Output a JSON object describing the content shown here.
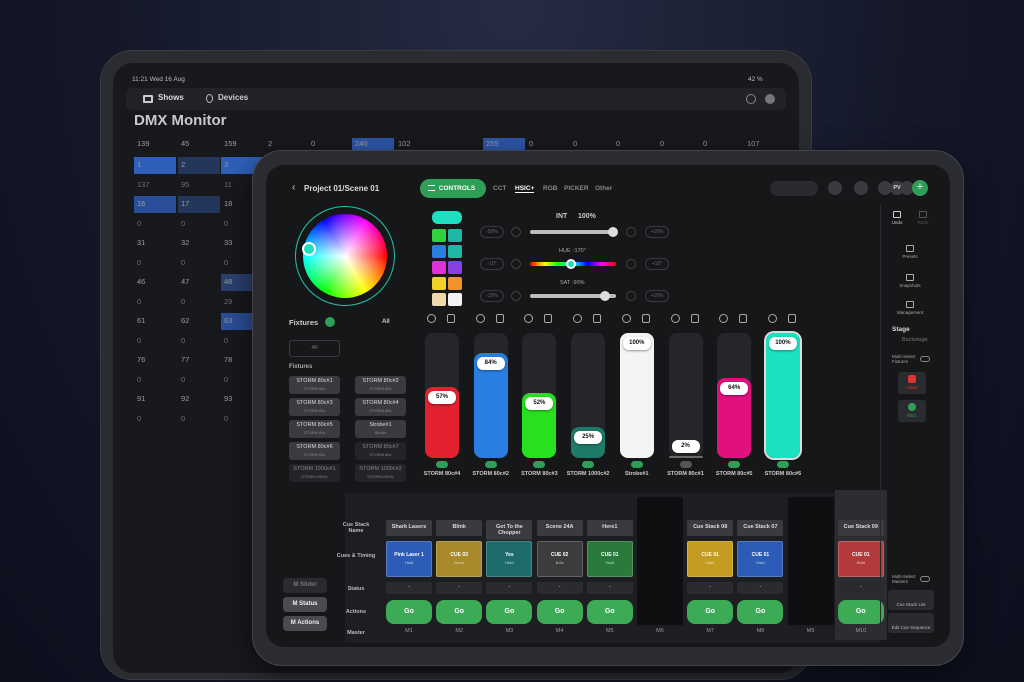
{
  "back_screen": {
    "status_time": "11:21  Wed 16 Aug",
    "battery": "42 %",
    "tabs": [
      "Shows",
      "Devices"
    ],
    "title": "DMX Monitor",
    "header_row": [
      "139",
      "45",
      "159",
      "2",
      "0",
      "240",
      "102",
      "255",
      "0",
      "0",
      "0",
      "0",
      "0",
      "107"
    ],
    "rows": [
      [
        "1",
        "2",
        "3"
      ],
      [
        "137",
        "95",
        "11"
      ],
      [
        "16",
        "17",
        "18"
      ],
      [
        "0",
        "0",
        "0"
      ],
      [
        "31",
        "32",
        "33"
      ],
      [
        "0",
        "0",
        "0"
      ],
      [
        "46",
        "47",
        "48"
      ],
      [
        "0",
        "0",
        "29"
      ],
      [
        "61",
        "62",
        "63"
      ],
      [
        "0",
        "0",
        "0"
      ],
      [
        "76",
        "77",
        "78"
      ],
      [
        "0",
        "0",
        "0"
      ],
      [
        "91",
        "92",
        "93"
      ],
      [
        "0",
        "0",
        "0"
      ]
    ]
  },
  "front_screen": {
    "breadcrumb": "Project 01/Scene 01",
    "mode_button": "CONTROLS",
    "tabs": [
      "CCT",
      "HSIC+",
      "RGB",
      "PICKER",
      "Other"
    ],
    "active_tab": 1,
    "avatar": "PV",
    "sliders": [
      {
        "label": "INT",
        "readout": "100%",
        "minus": "-50%",
        "plus": "+10%"
      },
      {
        "label": "HUE",
        "readout": ":170°",
        "minus": "-10°",
        "plus": "+10°"
      },
      {
        "label": "SAT",
        "readout": ":90%",
        "minus": "-10%",
        "plus": "+10%"
      }
    ],
    "fixtures_title": "Fixtures",
    "all_link": "All",
    "all_button": "All",
    "fixtures_subtitle": "Fixtures",
    "fixture_buttons": [
      {
        "name": "STORM 80c#1",
        "type": "STORM 80c"
      },
      {
        "name": "STORM 80c#2",
        "type": "STORM 80c"
      },
      {
        "name": "STORM 80c#3",
        "type": "STORM 80c"
      },
      {
        "name": "STORM 80c#4",
        "type": "STORM 80c"
      },
      {
        "name": "STORM 80c#5",
        "type": "STORM 80c"
      },
      {
        "name": "Strobe#1",
        "type": "Strobe"
      },
      {
        "name": "STORM 80c#6",
        "type": "STORM 80c"
      },
      {
        "name": "STORM 80c#7",
        "type": "STORM 80c"
      },
      {
        "name": "STORM 1000c#1",
        "type": "STORM 1000c"
      },
      {
        "name": "STORM 1000c#2",
        "type": "STORM 1000c"
      }
    ],
    "faders": [
      {
        "name": "STORM 80c#4",
        "level": 57,
        "label": "57%",
        "color": "#e3202e",
        "enabled": true
      },
      {
        "name": "STORM 80c#2",
        "level": 84,
        "label": "84%",
        "color": "#2a7de1",
        "enabled": true
      },
      {
        "name": "STORM 80c#3",
        "level": 52,
        "label": "52%",
        "color": "#27e01e",
        "enabled": true
      },
      {
        "name": "STORM 1000c#2",
        "level": 25,
        "label": "25%",
        "color": "#1f7a68",
        "enabled": true
      },
      {
        "name": "Strobe#1",
        "level": 100,
        "label": "100%",
        "color": "#f4f4f4",
        "enabled": true
      },
      {
        "name": "STORM 80c#1",
        "level": 2,
        "label": "2%",
        "color": "#6a6a6a",
        "enabled": false
      },
      {
        "name": "STORM 80c#5",
        "level": 64,
        "label": "64%",
        "color": "#e0117f",
        "enabled": true
      },
      {
        "name": "STORM 80c#6",
        "level": 100,
        "label": "100%",
        "color": "#1de0c0",
        "enabled": true
      }
    ],
    "cue_row_labels": [
      "Cue Stack Name",
      "Cues & Timing",
      "Status",
      "Actions",
      "Master"
    ],
    "masters": [
      {
        "master": "M1",
        "stack": "Shark Lasers",
        "cue": "Pink Laser 1",
        "timing": "Hold",
        "status": "-",
        "action": "Go",
        "color": "#2d5bb8"
      },
      {
        "master": "M2",
        "stack": "Blink",
        "cue": "CUE 03",
        "timing": "Done",
        "status": "-",
        "action": "Go",
        "color": "#a88a2a"
      },
      {
        "master": "M3",
        "stack": "Get To the Chopper",
        "cue": "Yes",
        "timing": "Hold",
        "status": "-",
        "action": "Go",
        "color": "#1d6b6a"
      },
      {
        "master": "M4",
        "stack": "Scene 24A",
        "cue": "CUE 02",
        "timing": "8.0s",
        "status": "-",
        "action": "Go",
        "color": "#3c3c3e"
      },
      {
        "master": "M5",
        "stack": "Here1",
        "cue": "CUE 01",
        "timing": "Hold",
        "status": "-",
        "action": "Go",
        "color": "#2a7a3c"
      },
      {
        "master": "M6"
      },
      {
        "master": "M7",
        "stack": "Cue Stack 08",
        "cue": "CUE 01",
        "timing": "Hold",
        "status": "-",
        "action": "Go",
        "color": "#c39b1f"
      },
      {
        "master": "M8",
        "stack": "Cue Stack 07",
        "cue": "CUE 01",
        "timing": "Hold",
        "status": "-",
        "action": "Go",
        "color": "#2d5bb8"
      },
      {
        "master": "M9"
      },
      {
        "master": "M10",
        "stack": "Cue Stack 09",
        "cue": "CUE 01",
        "timing": "Hold",
        "status": "-",
        "action": "Go",
        "color": "#b23a3a"
      }
    ],
    "master_toggles": [
      "M Slider",
      "M Status",
      "M Actions"
    ],
    "sidebar": {
      "undo": "Undo",
      "redo": "Redo",
      "presets": "Presets",
      "snapshots": "Snapshots",
      "management": "Management",
      "stage": "Stage",
      "backstage": "Backstage",
      "multi_fixtures": "Multi-Select Fixtures",
      "clear": "Clear",
      "rec": "REC",
      "multi_masters": "Multi-Select Masters",
      "cue_list": "Cue Stack List",
      "edit_cue": "Edit Cue Sequence"
    }
  }
}
